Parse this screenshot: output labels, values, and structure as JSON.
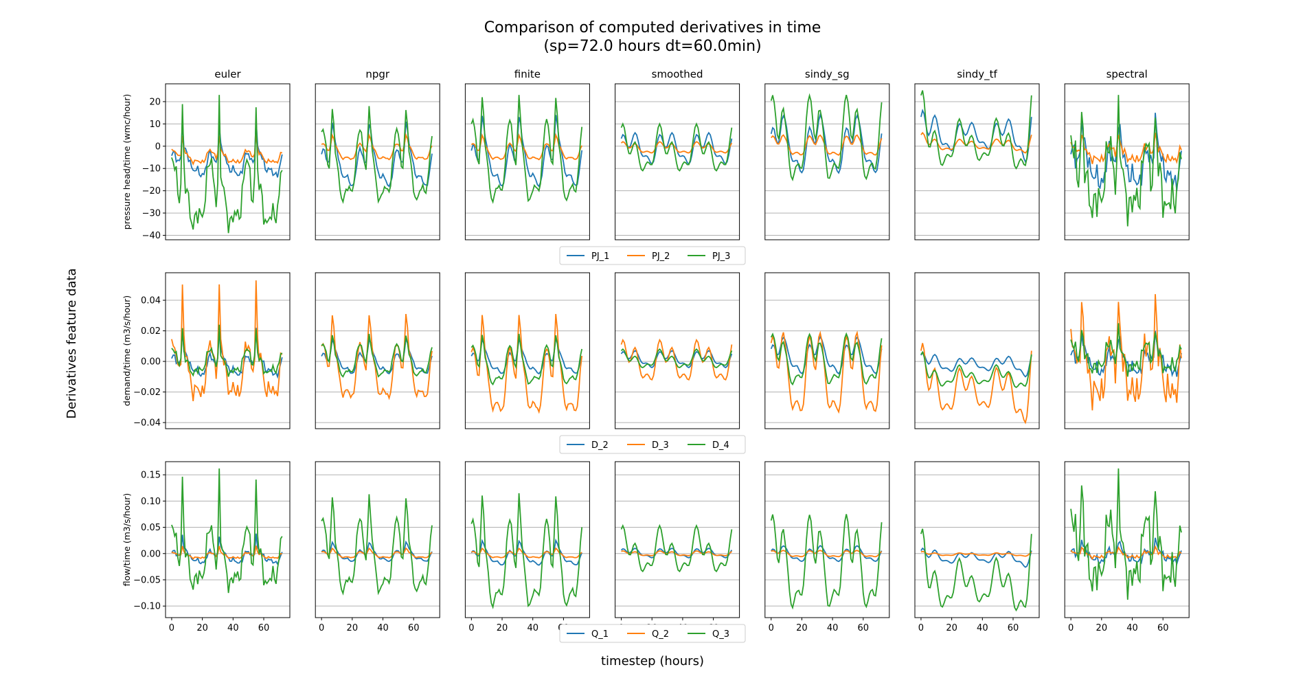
{
  "figure": {
    "title_line1": "Comparison of computed derivatives in time",
    "title_line2": "(sp=72.0 hours dt=60.0min)",
    "supylabel": "Derivatives feature data",
    "supxlabel": "timestep (hours)"
  },
  "colors": {
    "blue": "#1f77b4",
    "orange": "#ff7f0e",
    "green": "#2ca02c",
    "grid": "#b0b0b0"
  },
  "chart_data": {
    "type": "line",
    "grid": "y-only",
    "methods": [
      "euler",
      "npgr",
      "finite",
      "smoothed",
      "sindy_sg",
      "sindy_tf",
      "spectral"
    ],
    "x": {
      "label": "timestep (hours)",
      "range": [
        0,
        72
      ],
      "lim": [
        -4,
        77
      ],
      "ticks": [
        0,
        20,
        40,
        60
      ]
    },
    "rows": [
      {
        "ylabel": "pressure head/time (wmc/hour)",
        "ylim": [
          -42,
          28
        ],
        "yticks": [
          20,
          10,
          0,
          -10,
          -20,
          -30,
          -40
        ],
        "ytick_labels": [
          "20",
          "10",
          "0",
          "−10",
          "−20",
          "−30",
          "−40"
        ],
        "legend": [
          "PJ_1",
          "PJ_2",
          "PJ_3"
        ],
        "legend_placement": "below row, centered",
        "approx_ranges": {
          "euler": {
            "PJ_1": [
              -14,
              12
            ],
            "PJ_2": [
              -8,
              5
            ],
            "PJ_3": [
              -39,
              23
            ]
          },
          "npgr": {
            "PJ_1": [
              -18,
              11
            ],
            "PJ_2": [
              -6,
              5
            ],
            "PJ_3": [
              -25,
              18
            ]
          },
          "finite": {
            "PJ_1": [
              -18,
              14
            ],
            "PJ_2": [
              -6,
              5
            ],
            "PJ_3": [
              -25,
              23
            ]
          },
          "smoothed": {
            "PJ_1": [
              -8,
              6
            ],
            "PJ_2": [
              -3,
              2
            ],
            "PJ_3": [
              -11,
              10
            ]
          },
          "sindy_sg": {
            "PJ_1": [
              -12,
              14
            ],
            "PJ_2": [
              -4,
              5
            ],
            "PJ_3": [
              -15,
              23
            ]
          },
          "sindy_tf": {
            "PJ_1": [
              -7,
              16
            ],
            "PJ_2": [
              -3,
              6
            ],
            "PJ_3": [
              -10,
              25
            ]
          },
          "spectral": {
            "PJ_1": [
              -20,
              15
            ],
            "PJ_2": [
              -8,
              6
            ],
            "PJ_3": [
              -36,
              23
            ]
          }
        }
      },
      {
        "ylabel": "demand/time (m3/s/hour)",
        "ylim": [
          -0.044,
          0.058
        ],
        "yticks": [
          0.04,
          0.02,
          0.0,
          -0.02,
          -0.04
        ],
        "ytick_labels": [
          "0.04",
          "0.02",
          "0.00",
          "−0.02",
          "−0.04"
        ],
        "legend": [
          "D_2",
          "D_3",
          "D_4"
        ],
        "legend_placement": "below row, centered",
        "approx_ranges": {
          "euler": {
            "D_2": [
              -0.01,
              0.022
            ],
            "D_3": [
              -0.026,
              0.053
            ],
            "D_4": [
              -0.01,
              0.024
            ]
          },
          "npgr": {
            "D_2": [
              -0.008,
              0.015
            ],
            "D_3": [
              -0.024,
              0.031
            ],
            "D_4": [
              -0.01,
              0.018
            ]
          },
          "finite": {
            "D_2": [
              -0.008,
              0.015
            ],
            "D_3": [
              -0.033,
              0.031
            ],
            "D_4": [
              -0.015,
              0.018
            ]
          },
          "smoothed": {
            "D_2": [
              -0.004,
              0.007
            ],
            "D_3": [
              -0.012,
              0.014
            ],
            "D_4": [
              -0.004,
              0.008
            ]
          },
          "sindy_sg": {
            "D_2": [
              -0.008,
              0.016
            ],
            "D_3": [
              -0.033,
              0.019
            ],
            "D_4": [
              -0.015,
              0.018
            ]
          },
          "sindy_tf": {
            "D_2": [
              -0.01,
              0.006
            ],
            "D_3": [
              -0.04,
              0.012
            ],
            "D_4": [
              -0.017,
              0.006
            ]
          },
          "spectral": {
            "D_2": [
              -0.01,
              0.02
            ],
            "D_3": [
              -0.032,
              0.044
            ],
            "D_4": [
              -0.01,
              0.025
            ]
          }
        }
      },
      {
        "ylabel": "flow/time (m3/s/hour)",
        "ylim": [
          -0.122,
          0.175
        ],
        "yticks": [
          0.15,
          0.1,
          0.05,
          0.0,
          -0.05,
          -0.1
        ],
        "ytick_labels": [
          "0.15",
          "0.10",
          "0.05",
          "0.00",
          "−0.05",
          "−0.10"
        ],
        "legend": [
          "Q_1",
          "Q_2",
          "Q_3"
        ],
        "legend_placement": "below row, centered",
        "approx_ranges": {
          "euler": {
            "Q_1": [
              -0.02,
              0.038
            ],
            "Q_2": [
              -0.01,
              0.015
            ],
            "Q_3": [
              -0.075,
              0.162
            ]
          },
          "npgr": {
            "Q_1": [
              -0.015,
              0.022
            ],
            "Q_2": [
              -0.008,
              0.01
            ],
            "Q_3": [
              -0.076,
              0.113
            ]
          },
          "finite": {
            "Q_1": [
              -0.022,
              0.025
            ],
            "Q_2": [
              -0.008,
              0.01
            ],
            "Q_3": [
              -0.102,
              0.115
            ]
          },
          "smoothed": {
            "Q_1": [
              -0.008,
              0.01
            ],
            "Q_2": [
              -0.004,
              0.005
            ],
            "Q_3": [
              -0.034,
              0.053
            ]
          },
          "sindy_sg": {
            "Q_1": [
              -0.015,
              0.015
            ],
            "Q_2": [
              -0.006,
              0.006
            ],
            "Q_3": [
              -0.103,
              0.075
            ]
          },
          "sindy_tf": {
            "Q_1": [
              -0.026,
              0.01
            ],
            "Q_2": [
              -0.005,
              0.004
            ],
            "Q_3": [
              -0.108,
              0.047
            ]
          },
          "spectral": {
            "Q_1": [
              -0.02,
              0.03
            ],
            "Q_2": [
              -0.01,
              0.013
            ],
            "Q_3": [
              -0.088,
              0.162
            ]
          }
        }
      }
    ]
  }
}
